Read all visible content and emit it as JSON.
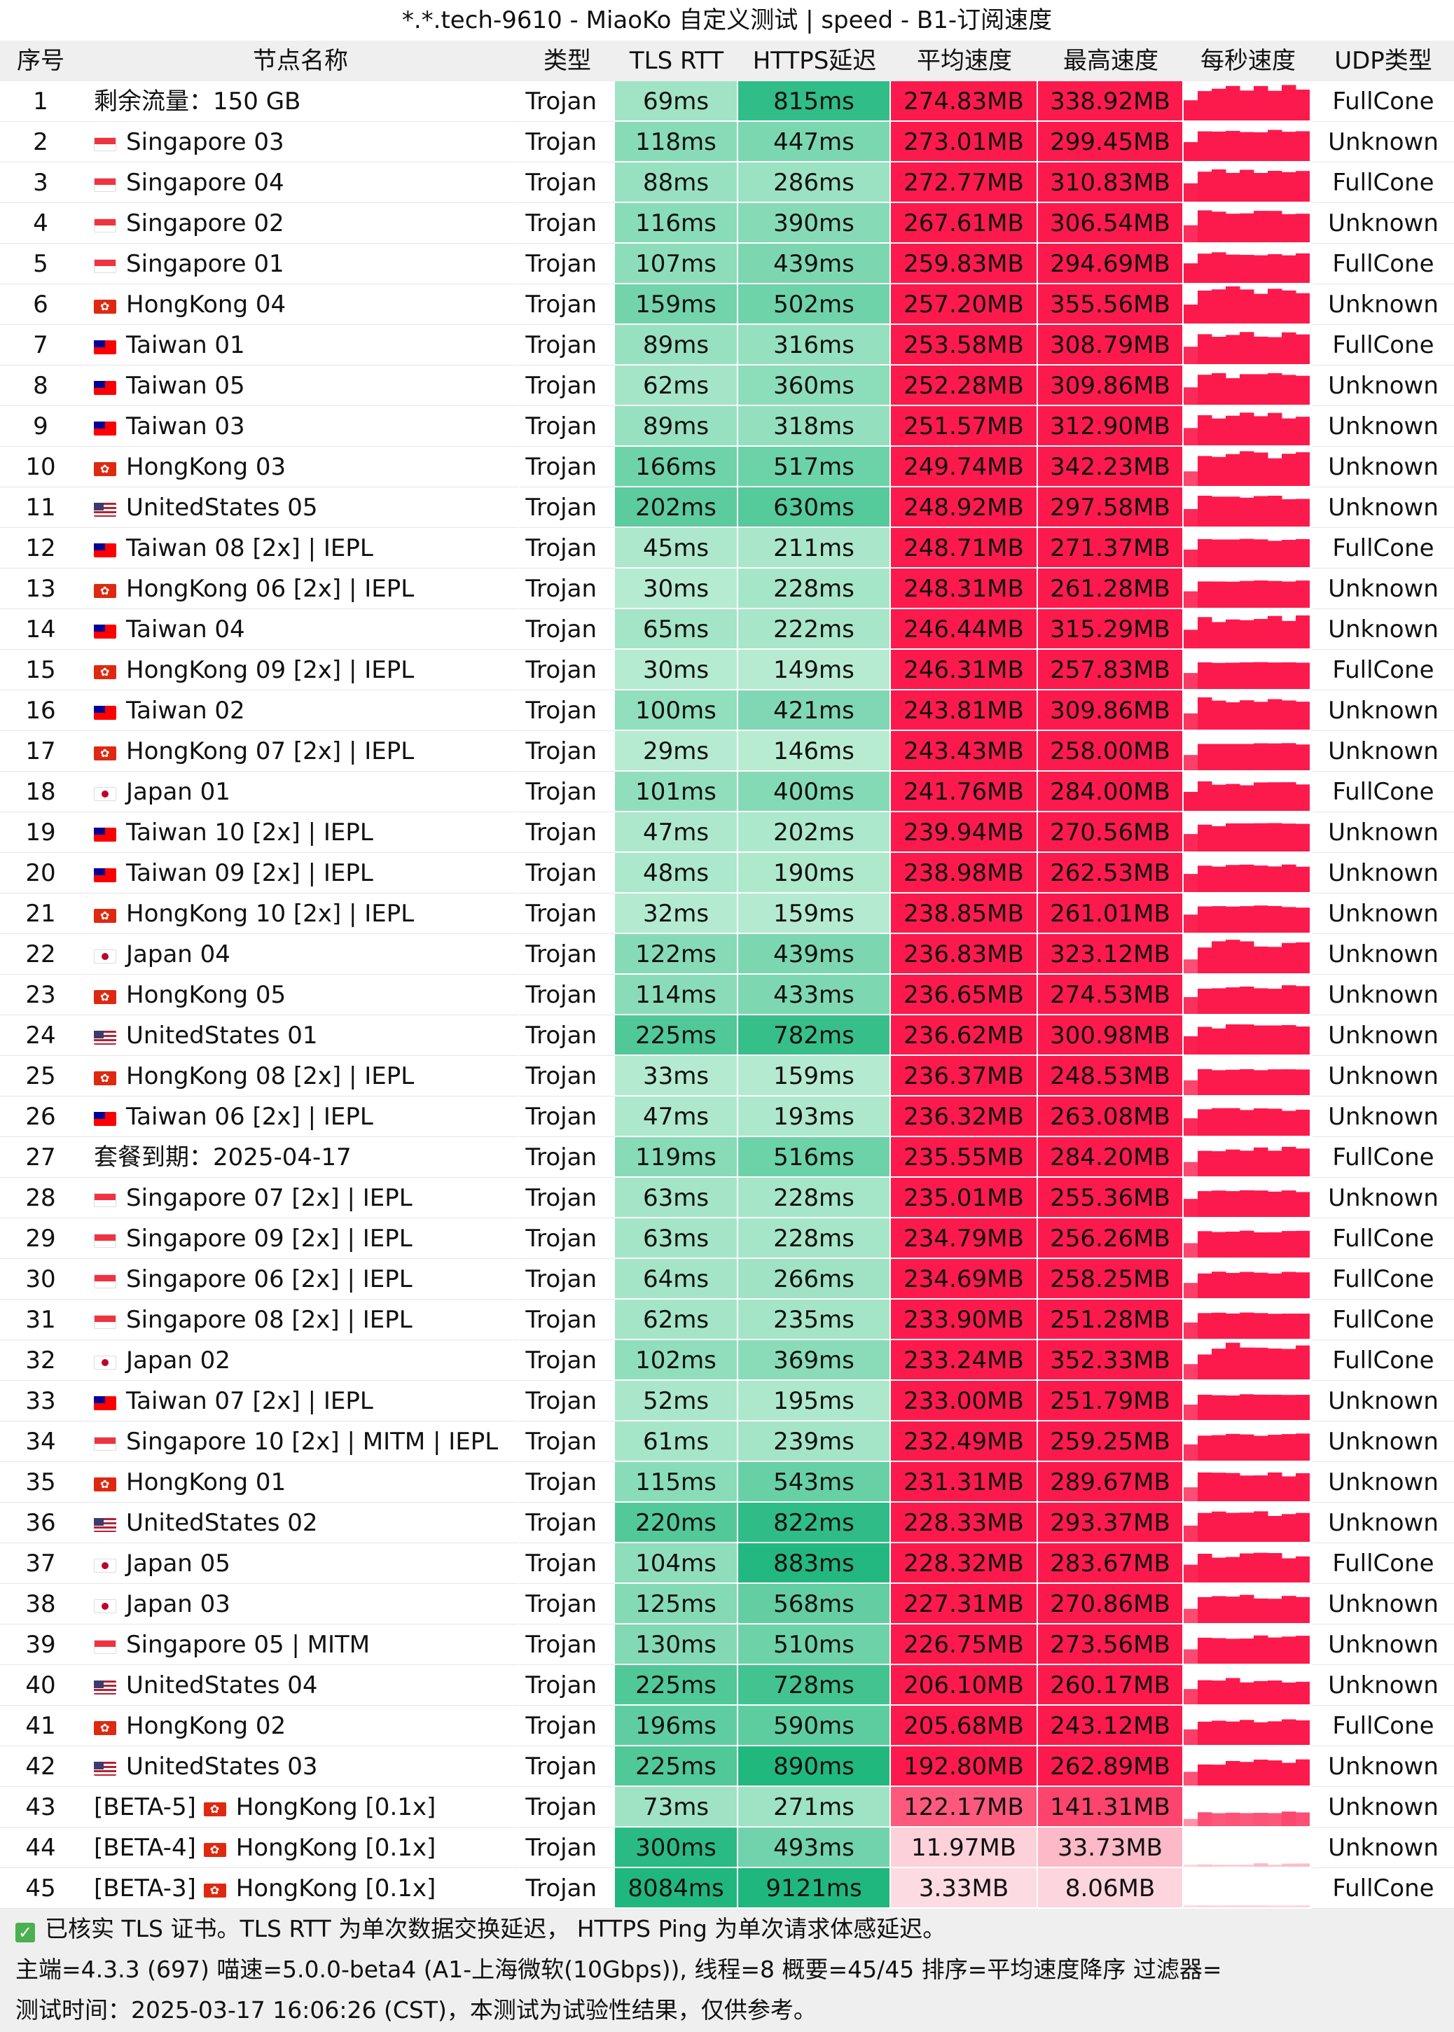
{
  "title": "*.*.tech-9610 - MiaoKo 自定义测试 | speed - B1-订阅速度",
  "headers": [
    "序号",
    "节点名称",
    "类型",
    "TLS RTT",
    "HTTPS延迟",
    "平均速度",
    "最高速度",
    "每秒速度",
    "UDP类型"
  ],
  "rows": [
    {
      "idx": "1",
      "prefix": "",
      "flag": "",
      "name": "剩余流量：150 GB",
      "type": "Trojan",
      "rtt": "69ms",
      "https": "815ms",
      "avg": "274.83MB",
      "max": "338.92MB",
      "udp": "FullCone",
      "rtt_ms": 69,
      "https_ms": 815,
      "avg_mb": 274.83,
      "max_mb": 338.92
    },
    {
      "idx": "2",
      "prefix": "",
      "flag": "sg",
      "name": "Singapore 03",
      "type": "Trojan",
      "rtt": "118ms",
      "https": "447ms",
      "avg": "273.01MB",
      "max": "299.45MB",
      "udp": "Unknown",
      "rtt_ms": 118,
      "https_ms": 447,
      "avg_mb": 273.01,
      "max_mb": 299.45
    },
    {
      "idx": "3",
      "prefix": "",
      "flag": "sg",
      "name": "Singapore 04",
      "type": "Trojan",
      "rtt": "88ms",
      "https": "286ms",
      "avg": "272.77MB",
      "max": "310.83MB",
      "udp": "FullCone",
      "rtt_ms": 88,
      "https_ms": 286,
      "avg_mb": 272.77,
      "max_mb": 310.83
    },
    {
      "idx": "4",
      "prefix": "",
      "flag": "sg",
      "name": "Singapore 02",
      "type": "Trojan",
      "rtt": "116ms",
      "https": "390ms",
      "avg": "267.61MB",
      "max": "306.54MB",
      "udp": "Unknown",
      "rtt_ms": 116,
      "https_ms": 390,
      "avg_mb": 267.61,
      "max_mb": 306.54
    },
    {
      "idx": "5",
      "prefix": "",
      "flag": "sg",
      "name": "Singapore 01",
      "type": "Trojan",
      "rtt": "107ms",
      "https": "439ms",
      "avg": "259.83MB",
      "max": "294.69MB",
      "udp": "FullCone",
      "rtt_ms": 107,
      "https_ms": 439,
      "avg_mb": 259.83,
      "max_mb": 294.69
    },
    {
      "idx": "6",
      "prefix": "",
      "flag": "hk",
      "name": "HongKong 04",
      "type": "Trojan",
      "rtt": "159ms",
      "https": "502ms",
      "avg": "257.20MB",
      "max": "355.56MB",
      "udp": "Unknown",
      "rtt_ms": 159,
      "https_ms": 502,
      "avg_mb": 257.2,
      "max_mb": 355.56
    },
    {
      "idx": "7",
      "prefix": "",
      "flag": "tw",
      "name": "Taiwan 01",
      "type": "Trojan",
      "rtt": "89ms",
      "https": "316ms",
      "avg": "253.58MB",
      "max": "308.79MB",
      "udp": "FullCone",
      "rtt_ms": 89,
      "https_ms": 316,
      "avg_mb": 253.58,
      "max_mb": 308.79
    },
    {
      "idx": "8",
      "prefix": "",
      "flag": "tw",
      "name": "Taiwan 05",
      "type": "Trojan",
      "rtt": "62ms",
      "https": "360ms",
      "avg": "252.28MB",
      "max": "309.86MB",
      "udp": "Unknown",
      "rtt_ms": 62,
      "https_ms": 360,
      "avg_mb": 252.28,
      "max_mb": 309.86
    },
    {
      "idx": "9",
      "prefix": "",
      "flag": "tw",
      "name": "Taiwan 03",
      "type": "Trojan",
      "rtt": "89ms",
      "https": "318ms",
      "avg": "251.57MB",
      "max": "312.90MB",
      "udp": "Unknown",
      "rtt_ms": 89,
      "https_ms": 318,
      "avg_mb": 251.57,
      "max_mb": 312.9
    },
    {
      "idx": "10",
      "prefix": "",
      "flag": "hk",
      "name": "HongKong 03",
      "type": "Trojan",
      "rtt": "166ms",
      "https": "517ms",
      "avg": "249.74MB",
      "max": "342.23MB",
      "udp": "Unknown",
      "rtt_ms": 166,
      "https_ms": 517,
      "avg_mb": 249.74,
      "max_mb": 342.23
    },
    {
      "idx": "11",
      "prefix": "",
      "flag": "us",
      "name": "UnitedStates 05",
      "type": "Trojan",
      "rtt": "202ms",
      "https": "630ms",
      "avg": "248.92MB",
      "max": "297.58MB",
      "udp": "Unknown",
      "rtt_ms": 202,
      "https_ms": 630,
      "avg_mb": 248.92,
      "max_mb": 297.58
    },
    {
      "idx": "12",
      "prefix": "",
      "flag": "tw",
      "name": "Taiwan 08 [2x] | IEPL",
      "type": "Trojan",
      "rtt": "45ms",
      "https": "211ms",
      "avg": "248.71MB",
      "max": "271.37MB",
      "udp": "FullCone",
      "rtt_ms": 45,
      "https_ms": 211,
      "avg_mb": 248.71,
      "max_mb": 271.37
    },
    {
      "idx": "13",
      "prefix": "",
      "flag": "hk",
      "name": "HongKong 06 [2x] | IEPL",
      "type": "Trojan",
      "rtt": "30ms",
      "https": "228ms",
      "avg": "248.31MB",
      "max": "261.28MB",
      "udp": "Unknown",
      "rtt_ms": 30,
      "https_ms": 228,
      "avg_mb": 248.31,
      "max_mb": 261.28
    },
    {
      "idx": "14",
      "prefix": "",
      "flag": "tw",
      "name": "Taiwan 04",
      "type": "Trojan",
      "rtt": "65ms",
      "https": "222ms",
      "avg": "246.44MB",
      "max": "315.29MB",
      "udp": "Unknown",
      "rtt_ms": 65,
      "https_ms": 222,
      "avg_mb": 246.44,
      "max_mb": 315.29
    },
    {
      "idx": "15",
      "prefix": "",
      "flag": "hk",
      "name": "HongKong 09 [2x] | IEPL",
      "type": "Trojan",
      "rtt": "30ms",
      "https": "149ms",
      "avg": "246.31MB",
      "max": "257.83MB",
      "udp": "FullCone",
      "rtt_ms": 30,
      "https_ms": 149,
      "avg_mb": 246.31,
      "max_mb": 257.83
    },
    {
      "idx": "16",
      "prefix": "",
      "flag": "tw",
      "name": "Taiwan 02",
      "type": "Trojan",
      "rtt": "100ms",
      "https": "421ms",
      "avg": "243.81MB",
      "max": "309.86MB",
      "udp": "Unknown",
      "rtt_ms": 100,
      "https_ms": 421,
      "avg_mb": 243.81,
      "max_mb": 309.86
    },
    {
      "idx": "17",
      "prefix": "",
      "flag": "hk",
      "name": "HongKong 07 [2x] | IEPL",
      "type": "Trojan",
      "rtt": "29ms",
      "https": "146ms",
      "avg": "243.43MB",
      "max": "258.00MB",
      "udp": "Unknown",
      "rtt_ms": 29,
      "https_ms": 146,
      "avg_mb": 243.43,
      "max_mb": 258.0
    },
    {
      "idx": "18",
      "prefix": "",
      "flag": "jp",
      "name": "Japan 01",
      "type": "Trojan",
      "rtt": "101ms",
      "https": "400ms",
      "avg": "241.76MB",
      "max": "284.00MB",
      "udp": "FullCone",
      "rtt_ms": 101,
      "https_ms": 400,
      "avg_mb": 241.76,
      "max_mb": 284.0
    },
    {
      "idx": "19",
      "prefix": "",
      "flag": "tw",
      "name": "Taiwan 10 [2x] | IEPL",
      "type": "Trojan",
      "rtt": "47ms",
      "https": "202ms",
      "avg": "239.94MB",
      "max": "270.56MB",
      "udp": "Unknown",
      "rtt_ms": 47,
      "https_ms": 202,
      "avg_mb": 239.94,
      "max_mb": 270.56
    },
    {
      "idx": "20",
      "prefix": "",
      "flag": "tw",
      "name": "Taiwan 09 [2x] | IEPL",
      "type": "Trojan",
      "rtt": "48ms",
      "https": "190ms",
      "avg": "238.98MB",
      "max": "262.53MB",
      "udp": "Unknown",
      "rtt_ms": 48,
      "https_ms": 190,
      "avg_mb": 238.98,
      "max_mb": 262.53
    },
    {
      "idx": "21",
      "prefix": "",
      "flag": "hk",
      "name": "HongKong 10 [2x] | IEPL",
      "type": "Trojan",
      "rtt": "32ms",
      "https": "159ms",
      "avg": "238.85MB",
      "max": "261.01MB",
      "udp": "Unknown",
      "rtt_ms": 32,
      "https_ms": 159,
      "avg_mb": 238.85,
      "max_mb": 261.01
    },
    {
      "idx": "22",
      "prefix": "",
      "flag": "jp",
      "name": "Japan 04",
      "type": "Trojan",
      "rtt": "122ms",
      "https": "439ms",
      "avg": "236.83MB",
      "max": "323.12MB",
      "udp": "Unknown",
      "rtt_ms": 122,
      "https_ms": 439,
      "avg_mb": 236.83,
      "max_mb": 323.12
    },
    {
      "idx": "23",
      "prefix": "",
      "flag": "hk",
      "name": "HongKong 05",
      "type": "Trojan",
      "rtt": "114ms",
      "https": "433ms",
      "avg": "236.65MB",
      "max": "274.53MB",
      "udp": "Unknown",
      "rtt_ms": 114,
      "https_ms": 433,
      "avg_mb": 236.65,
      "max_mb": 274.53
    },
    {
      "idx": "24",
      "prefix": "",
      "flag": "us",
      "name": "UnitedStates 01",
      "type": "Trojan",
      "rtt": "225ms",
      "https": "782ms",
      "avg": "236.62MB",
      "max": "300.98MB",
      "udp": "Unknown",
      "rtt_ms": 225,
      "https_ms": 782,
      "avg_mb": 236.62,
      "max_mb": 300.98
    },
    {
      "idx": "25",
      "prefix": "",
      "flag": "hk",
      "name": "HongKong 08 [2x] | IEPL",
      "type": "Trojan",
      "rtt": "33ms",
      "https": "159ms",
      "avg": "236.37MB",
      "max": "248.53MB",
      "udp": "Unknown",
      "rtt_ms": 33,
      "https_ms": 159,
      "avg_mb": 236.37,
      "max_mb": 248.53
    },
    {
      "idx": "26",
      "prefix": "",
      "flag": "tw",
      "name": "Taiwan 06 [2x] | IEPL",
      "type": "Trojan",
      "rtt": "47ms",
      "https": "193ms",
      "avg": "236.32MB",
      "max": "263.08MB",
      "udp": "Unknown",
      "rtt_ms": 47,
      "https_ms": 193,
      "avg_mb": 236.32,
      "max_mb": 263.08
    },
    {
      "idx": "27",
      "prefix": "",
      "flag": "",
      "name": "套餐到期：2025-04-17",
      "type": "Trojan",
      "rtt": "119ms",
      "https": "516ms",
      "avg": "235.55MB",
      "max": "284.20MB",
      "udp": "FullCone",
      "rtt_ms": 119,
      "https_ms": 516,
      "avg_mb": 235.55,
      "max_mb": 284.2
    },
    {
      "idx": "28",
      "prefix": "",
      "flag": "sg",
      "name": "Singapore 07 [2x] | IEPL",
      "type": "Trojan",
      "rtt": "63ms",
      "https": "228ms",
      "avg": "235.01MB",
      "max": "255.36MB",
      "udp": "Unknown",
      "rtt_ms": 63,
      "https_ms": 228,
      "avg_mb": 235.01,
      "max_mb": 255.36
    },
    {
      "idx": "29",
      "prefix": "",
      "flag": "sg",
      "name": "Singapore 09 [2x] | IEPL",
      "type": "Trojan",
      "rtt": "63ms",
      "https": "228ms",
      "avg": "234.79MB",
      "max": "256.26MB",
      "udp": "FullCone",
      "rtt_ms": 63,
      "https_ms": 228,
      "avg_mb": 234.79,
      "max_mb": 256.26
    },
    {
      "idx": "30",
      "prefix": "",
      "flag": "sg",
      "name": "Singapore 06 [2x] | IEPL",
      "type": "Trojan",
      "rtt": "64ms",
      "https": "266ms",
      "avg": "234.69MB",
      "max": "258.25MB",
      "udp": "FullCone",
      "rtt_ms": 64,
      "https_ms": 266,
      "avg_mb": 234.69,
      "max_mb": 258.25
    },
    {
      "idx": "31",
      "prefix": "",
      "flag": "sg",
      "name": "Singapore 08 [2x] | IEPL",
      "type": "Trojan",
      "rtt": "62ms",
      "https": "235ms",
      "avg": "233.90MB",
      "max": "251.28MB",
      "udp": "FullCone",
      "rtt_ms": 62,
      "https_ms": 235,
      "avg_mb": 233.9,
      "max_mb": 251.28
    },
    {
      "idx": "32",
      "prefix": "",
      "flag": "jp",
      "name": "Japan 02",
      "type": "Trojan",
      "rtt": "102ms",
      "https": "369ms",
      "avg": "233.24MB",
      "max": "352.33MB",
      "udp": "FullCone",
      "rtt_ms": 102,
      "https_ms": 369,
      "avg_mb": 233.24,
      "max_mb": 352.33
    },
    {
      "idx": "33",
      "prefix": "",
      "flag": "tw",
      "name": "Taiwan 07 [2x] | IEPL",
      "type": "Trojan",
      "rtt": "52ms",
      "https": "195ms",
      "avg": "233.00MB",
      "max": "251.79MB",
      "udp": "Unknown",
      "rtt_ms": 52,
      "https_ms": 195,
      "avg_mb": 233.0,
      "max_mb": 251.79
    },
    {
      "idx": "34",
      "prefix": "",
      "flag": "sg",
      "name": "Singapore 10 [2x] | MITM | IEPL",
      "type": "Trojan",
      "rtt": "61ms",
      "https": "239ms",
      "avg": "232.49MB",
      "max": "259.25MB",
      "udp": "Unknown",
      "rtt_ms": 61,
      "https_ms": 239,
      "avg_mb": 232.49,
      "max_mb": 259.25
    },
    {
      "idx": "35",
      "prefix": "",
      "flag": "hk",
      "name": "HongKong 01",
      "type": "Trojan",
      "rtt": "115ms",
      "https": "543ms",
      "avg": "231.31MB",
      "max": "289.67MB",
      "udp": "Unknown",
      "rtt_ms": 115,
      "https_ms": 543,
      "avg_mb": 231.31,
      "max_mb": 289.67
    },
    {
      "idx": "36",
      "prefix": "",
      "flag": "us",
      "name": "UnitedStates 02",
      "type": "Trojan",
      "rtt": "220ms",
      "https": "822ms",
      "avg": "228.33MB",
      "max": "293.37MB",
      "udp": "Unknown",
      "rtt_ms": 220,
      "https_ms": 822,
      "avg_mb": 228.33,
      "max_mb": 293.37
    },
    {
      "idx": "37",
      "prefix": "",
      "flag": "jp",
      "name": "Japan 05",
      "type": "Trojan",
      "rtt": "104ms",
      "https": "883ms",
      "avg": "228.32MB",
      "max": "283.67MB",
      "udp": "FullCone",
      "rtt_ms": 104,
      "https_ms": 883,
      "avg_mb": 228.32,
      "max_mb": 283.67
    },
    {
      "idx": "38",
      "prefix": "",
      "flag": "jp",
      "name": "Japan 03",
      "type": "Trojan",
      "rtt": "125ms",
      "https": "568ms",
      "avg": "227.31MB",
      "max": "270.86MB",
      "udp": "Unknown",
      "rtt_ms": 125,
      "https_ms": 568,
      "avg_mb": 227.31,
      "max_mb": 270.86
    },
    {
      "idx": "39",
      "prefix": "",
      "flag": "sg",
      "name": "Singapore 05 | MITM",
      "type": "Trojan",
      "rtt": "130ms",
      "https": "510ms",
      "avg": "226.75MB",
      "max": "273.56MB",
      "udp": "Unknown",
      "rtt_ms": 130,
      "https_ms": 510,
      "avg_mb": 226.75,
      "max_mb": 273.56
    },
    {
      "idx": "40",
      "prefix": "",
      "flag": "us",
      "name": "UnitedStates 04",
      "type": "Trojan",
      "rtt": "225ms",
      "https": "728ms",
      "avg": "206.10MB",
      "max": "260.17MB",
      "udp": "Unknown",
      "rtt_ms": 225,
      "https_ms": 728,
      "avg_mb": 206.1,
      "max_mb": 260.17
    },
    {
      "idx": "41",
      "prefix": "",
      "flag": "hk",
      "name": "HongKong 02",
      "type": "Trojan",
      "rtt": "196ms",
      "https": "590ms",
      "avg": "205.68MB",
      "max": "243.12MB",
      "udp": "FullCone",
      "rtt_ms": 196,
      "https_ms": 590,
      "avg_mb": 205.68,
      "max_mb": 243.12
    },
    {
      "idx": "42",
      "prefix": "",
      "flag": "us",
      "name": "UnitedStates 03",
      "type": "Trojan",
      "rtt": "225ms",
      "https": "890ms",
      "avg": "192.80MB",
      "max": "262.89MB",
      "udp": "Unknown",
      "rtt_ms": 225,
      "https_ms": 890,
      "avg_mb": 192.8,
      "max_mb": 262.89
    },
    {
      "idx": "43",
      "prefix": "[BETA-5]",
      "flag": "hk",
      "name": "HongKong [0.1x]",
      "type": "Trojan",
      "rtt": "73ms",
      "https": "271ms",
      "avg": "122.17MB",
      "max": "141.31MB",
      "udp": "Unknown",
      "rtt_ms": 73,
      "https_ms": 271,
      "avg_mb": 122.17,
      "max_mb": 141.31
    },
    {
      "idx": "44",
      "prefix": "[BETA-4]",
      "flag": "hk",
      "name": "HongKong [0.1x]",
      "type": "Trojan",
      "rtt": "300ms",
      "https": "493ms",
      "avg": "11.97MB",
      "max": "33.73MB",
      "udp": "Unknown",
      "rtt_ms": 300,
      "https_ms": 493,
      "avg_mb": 11.97,
      "max_mb": 33.73
    },
    {
      "idx": "45",
      "prefix": "[BETA-3]",
      "flag": "hk",
      "name": "HongKong [0.1x]",
      "type": "Trojan",
      "rtt": "8084ms",
      "https": "9121ms",
      "avg": "3.33MB",
      "max": "8.06MB",
      "udp": "FullCone",
      "rtt_ms": 8084,
      "https_ms": 9121,
      "avg_mb": 3.33,
      "max_mb": 8.06
    }
  ],
  "footer": {
    "line1": "已核实 TLS 证书。TLS RTT 为单次数据交换延迟， HTTPS Ping 为单次请求体感延迟。",
    "line2": "主端=4.3.3 (697) 喵速=5.0.0-beta4 (A1-上海微软(10Gbps)), 线程=8 概要=45/45 排序=平均速度降序 过滤器=",
    "line3": "测试时间：2025-03-17 16:06:26 (CST)，本测试为试验性结果，仅供参考。"
  },
  "colors": {
    "speed_strong": "#fc1a4c",
    "speed_light": "#fcdbe2",
    "latency_dark": "#1fb77d",
    "latency_light": "#b8ecd2",
    "header_bg": "#efefef"
  }
}
